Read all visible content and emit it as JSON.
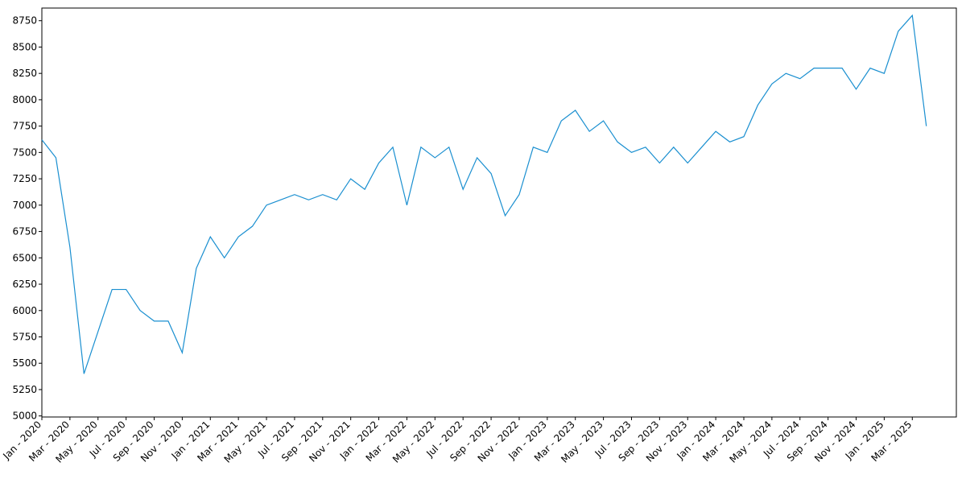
{
  "chart_data": {
    "type": "line",
    "x": [
      "2020-01",
      "2020-02",
      "2020-03",
      "2020-04",
      "2020-05",
      "2020-06",
      "2020-07",
      "2020-08",
      "2020-09",
      "2020-10",
      "2020-11",
      "2020-12",
      "2021-01",
      "2021-02",
      "2021-03",
      "2021-04",
      "2021-05",
      "2021-06",
      "2021-07",
      "2021-08",
      "2021-09",
      "2021-10",
      "2021-11",
      "2021-12",
      "2022-01",
      "2022-02",
      "2022-03",
      "2022-04",
      "2022-05",
      "2022-06",
      "2022-07",
      "2022-08",
      "2022-09",
      "2022-10",
      "2022-11",
      "2022-12",
      "2023-01",
      "2023-02",
      "2023-03",
      "2023-04",
      "2023-05",
      "2023-06",
      "2023-07",
      "2023-08",
      "2023-09",
      "2023-10",
      "2023-11",
      "2023-12",
      "2024-01",
      "2024-02",
      "2024-03",
      "2024-04",
      "2024-05",
      "2024-06",
      "2024-07",
      "2024-08",
      "2024-09",
      "2024-10",
      "2024-11",
      "2024-12",
      "2025-01",
      "2025-02",
      "2025-03",
      "2025-04"
    ],
    "series": [
      {
        "color": "#1a8fd0",
        "values": [
          7620,
          7450,
          6600,
          5400,
          5800,
          6200,
          6200,
          6000,
          5900,
          5900,
          5600,
          6400,
          6700,
          6500,
          6700,
          6800,
          7000,
          7050,
          7100,
          7050,
          7100,
          7050,
          7250,
          7150,
          7400,
          7550,
          7000,
          7550,
          7450,
          7550,
          7150,
          7450,
          7300,
          6900,
          7100,
          7550,
          7500,
          7800,
          7900,
          7700,
          7800,
          7600,
          7500,
          7550,
          7400,
          7550,
          7400,
          7550,
          7700,
          7600,
          7650,
          7950,
          8150,
          8250,
          8200,
          8300,
          8300,
          8300,
          8100,
          8300,
          8250,
          8650,
          8800,
          7750
        ]
      }
    ],
    "ylim": [
      4990,
      8870
    ],
    "yticks": [
      5000,
      5250,
      5500,
      5750,
      6000,
      6250,
      6500,
      6750,
      7000,
      7250,
      7500,
      7750,
      8000,
      8250,
      8500,
      8750
    ],
    "xticks": [
      {
        "value": "2020-01",
        "label": "Jan - 2020"
      },
      {
        "value": "2020-03",
        "label": "Mar - 2020"
      },
      {
        "value": "2020-05",
        "label": "May - 2020"
      },
      {
        "value": "2020-07",
        "label": "Jul - 2020"
      },
      {
        "value": "2020-09",
        "label": "Sep - 2020"
      },
      {
        "value": "2020-11",
        "label": "Nov - 2020"
      },
      {
        "value": "2021-01",
        "label": "Jan - 2021"
      },
      {
        "value": "2021-03",
        "label": "Mar - 2021"
      },
      {
        "value": "2021-05",
        "label": "May - 2021"
      },
      {
        "value": "2021-07",
        "label": "Jul - 2021"
      },
      {
        "value": "2021-09",
        "label": "Sep - 2021"
      },
      {
        "value": "2021-11",
        "label": "Nov - 2021"
      },
      {
        "value": "2022-01",
        "label": "Jan - 2022"
      },
      {
        "value": "2022-03",
        "label": "Mar - 2022"
      },
      {
        "value": "2022-05",
        "label": "May - 2022"
      },
      {
        "value": "2022-07",
        "label": "Jul - 2022"
      },
      {
        "value": "2022-09",
        "label": "Sep - 2022"
      },
      {
        "value": "2022-11",
        "label": "Nov - 2022"
      },
      {
        "value": "2023-01",
        "label": "Jan - 2023"
      },
      {
        "value": "2023-03",
        "label": "Mar - 2023"
      },
      {
        "value": "2023-05",
        "label": "May - 2023"
      },
      {
        "value": "2023-07",
        "label": "Jul - 2023"
      },
      {
        "value": "2023-09",
        "label": "Sep - 2023"
      },
      {
        "value": "2023-11",
        "label": "Nov - 2023"
      },
      {
        "value": "2024-01",
        "label": "Jan - 2024"
      },
      {
        "value": "2024-03",
        "label": "Mar - 2024"
      },
      {
        "value": "2024-05",
        "label": "May - 2024"
      },
      {
        "value": "2024-07",
        "label": "Jul - 2024"
      },
      {
        "value": "2024-09",
        "label": "Sep - 2024"
      },
      {
        "value": "2024-11",
        "label": "Nov - 2024"
      },
      {
        "value": "2025-01",
        "label": "Jan - 2025"
      },
      {
        "value": "2025-03",
        "label": "Mar - 2025"
      }
    ],
    "grid": false
  }
}
